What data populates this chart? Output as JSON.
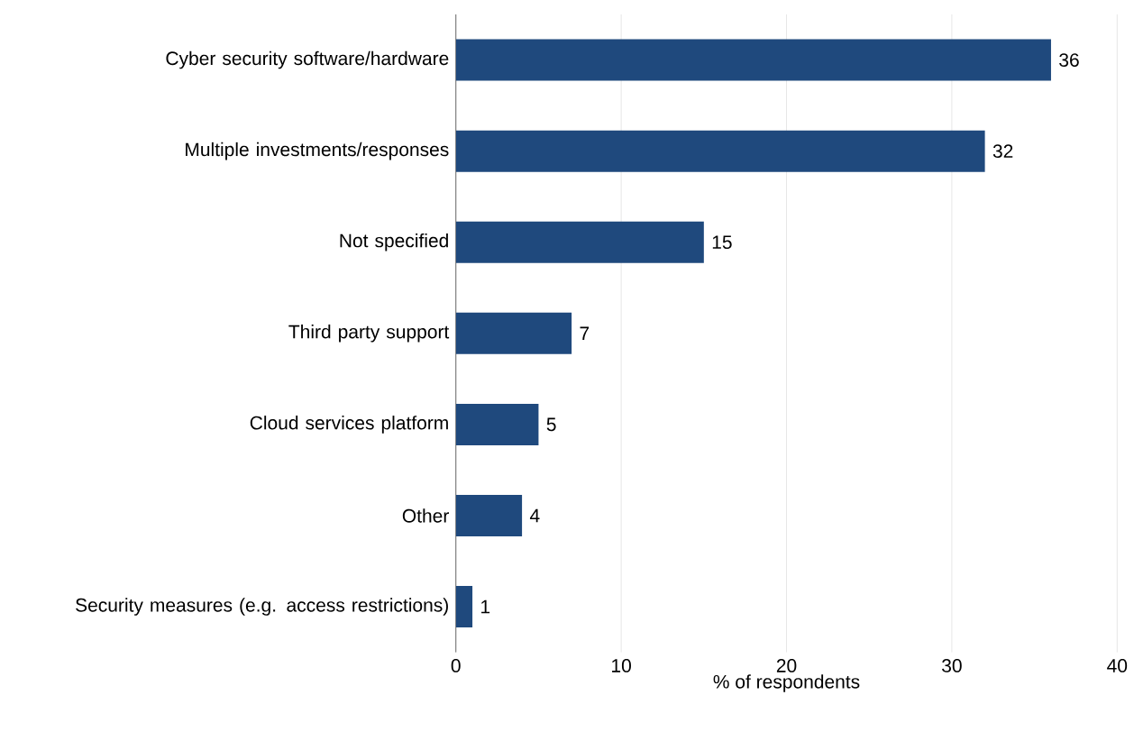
{
  "chart_data": {
    "type": "bar",
    "orientation": "horizontal",
    "xlabel": "% of respondents",
    "categories": [
      "Cyber security software/hardware",
      "Multiple investments/responses",
      "Not specified",
      "Third party support",
      "Cloud services platform",
      "Other",
      "Security measures (e.g. access restrictions)"
    ],
    "values": [
      36,
      32,
      15,
      7,
      5,
      4,
      1
    ],
    "color": "#1f497d",
    "data_labels": true,
    "xlim": [
      0,
      40
    ],
    "xticks": [
      0,
      10,
      20,
      30,
      40
    ],
    "grid": "x"
  }
}
